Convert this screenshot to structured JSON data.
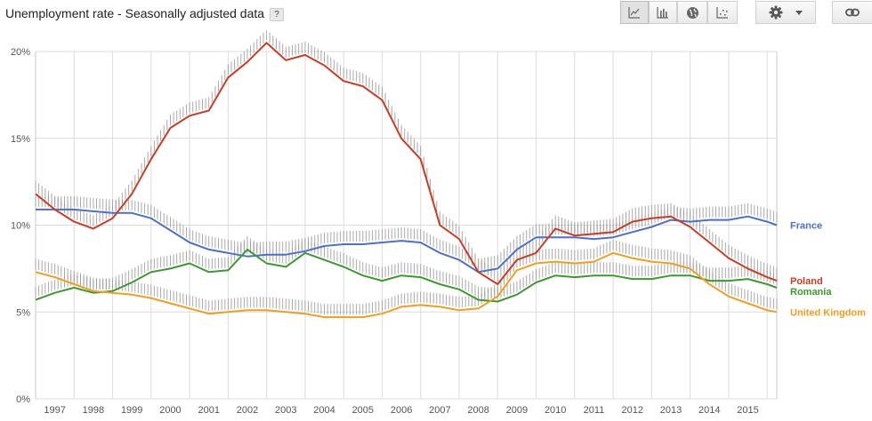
{
  "header": {
    "title": "Unemployment rate - Seasonally adjusted data",
    "help_label": "?",
    "toolbar": [
      {
        "name": "line-chart-icon",
        "selected": true
      },
      {
        "name": "bar-chart-icon",
        "selected": false
      },
      {
        "name": "map-icon",
        "selected": false
      },
      {
        "name": "scatter-chart-icon",
        "selected": false
      }
    ],
    "settings_icon": "gear-icon",
    "settings_dropdown_icon": "caret-down-icon",
    "link_icon": "link-icon"
  },
  "colors": {
    "France": "#4a6fd0",
    "Poland": "#cc3b20",
    "Romania": "#3a9a2e",
    "United Kingdom": "#f29d1d",
    "error_bars": "#9a9a9a",
    "grid": "#dcdcdc"
  },
  "chart_data": {
    "type": "line",
    "title": "Unemployment rate - Seasonally adjusted data",
    "xlabel": "",
    "ylabel": "",
    "xlim": [
      1996.5,
      2015.75
    ],
    "ylim": [
      0,
      20
    ],
    "y_ticks": [
      0,
      5,
      10,
      15,
      20
    ],
    "y_tick_labels": [
      "0%",
      "5%",
      "10%",
      "15%",
      "20%"
    ],
    "x_ticks": [
      1997,
      1998,
      1999,
      2000,
      2001,
      2002,
      2003,
      2004,
      2005,
      2006,
      2007,
      2008,
      2009,
      2010,
      2011,
      2012,
      2013,
      2014,
      2015
    ],
    "x_tick_labels": [
      "1997",
      "1998",
      "1999",
      "2000",
      "2001",
      "2002",
      "2003",
      "2004",
      "2005",
      "2006",
      "2007",
      "2008",
      "2009",
      "2010",
      "2011",
      "2012",
      "2013",
      "2014",
      "2015"
    ],
    "grid": true,
    "legend_position": "right, at line ends",
    "error_bars": true,
    "series": [
      {
        "name": "France",
        "points": [
          [
            1996.5,
            10.9
          ],
          [
            1997.0,
            10.9
          ],
          [
            1997.5,
            10.9
          ],
          [
            1998.0,
            10.8
          ],
          [
            1998.5,
            10.7
          ],
          [
            1999.0,
            10.7
          ],
          [
            1999.5,
            10.4
          ],
          [
            2000.0,
            9.7
          ],
          [
            2000.5,
            9.0
          ],
          [
            2001.0,
            8.6
          ],
          [
            2001.5,
            8.4
          ],
          [
            2002.0,
            8.2
          ],
          [
            2002.5,
            8.3
          ],
          [
            2003.0,
            8.3
          ],
          [
            2003.5,
            8.5
          ],
          [
            2004.0,
            8.8
          ],
          [
            2004.5,
            8.9
          ],
          [
            2005.0,
            8.9
          ],
          [
            2005.5,
            9.0
          ],
          [
            2006.0,
            9.1
          ],
          [
            2006.5,
            9.0
          ],
          [
            2007.0,
            8.4
          ],
          [
            2007.5,
            8.0
          ],
          [
            2008.0,
            7.3
          ],
          [
            2008.5,
            7.5
          ],
          [
            2009.0,
            8.6
          ],
          [
            2009.5,
            9.3
          ],
          [
            2010.0,
            9.3
          ],
          [
            2010.5,
            9.3
          ],
          [
            2011.0,
            9.2
          ],
          [
            2011.5,
            9.3
          ],
          [
            2012.0,
            9.6
          ],
          [
            2012.5,
            9.9
          ],
          [
            2013.0,
            10.3
          ],
          [
            2013.5,
            10.2
          ],
          [
            2014.0,
            10.3
          ],
          [
            2014.5,
            10.3
          ],
          [
            2015.0,
            10.5
          ],
          [
            2015.5,
            10.2
          ],
          [
            2015.75,
            10.0
          ]
        ]
      },
      {
        "name": "Poland",
        "points": [
          [
            1996.5,
            11.8
          ],
          [
            1997.0,
            10.9
          ],
          [
            1997.5,
            10.2
          ],
          [
            1998.0,
            9.8
          ],
          [
            1998.5,
            10.4
          ],
          [
            1999.0,
            11.8
          ],
          [
            1999.5,
            13.8
          ],
          [
            2000.0,
            15.6
          ],
          [
            2000.5,
            16.3
          ],
          [
            2001.0,
            16.6
          ],
          [
            2001.5,
            18.5
          ],
          [
            2002.0,
            19.4
          ],
          [
            2002.5,
            20.5
          ],
          [
            2003.0,
            19.5
          ],
          [
            2003.5,
            19.8
          ],
          [
            2004.0,
            19.2
          ],
          [
            2004.5,
            18.3
          ],
          [
            2005.0,
            18.0
          ],
          [
            2005.5,
            17.2
          ],
          [
            2006.0,
            15.0
          ],
          [
            2006.5,
            13.8
          ],
          [
            2007.0,
            10.0
          ],
          [
            2007.5,
            9.2
          ],
          [
            2008.0,
            7.3
          ],
          [
            2008.5,
            6.6
          ],
          [
            2009.0,
            8.0
          ],
          [
            2009.5,
            8.4
          ],
          [
            2010.0,
            9.8
          ],
          [
            2010.5,
            9.4
          ],
          [
            2011.0,
            9.5
          ],
          [
            2011.5,
            9.6
          ],
          [
            2012.0,
            10.2
          ],
          [
            2012.5,
            10.4
          ],
          [
            2013.0,
            10.5
          ],
          [
            2013.5,
            9.9
          ],
          [
            2014.0,
            9.0
          ],
          [
            2014.5,
            8.1
          ],
          [
            2015.0,
            7.5
          ],
          [
            2015.5,
            7.0
          ],
          [
            2015.75,
            6.8
          ]
        ]
      },
      {
        "name": "Romania",
        "points": [
          [
            1996.5,
            5.7
          ],
          [
            1997.0,
            6.1
          ],
          [
            1997.5,
            6.4
          ],
          [
            1998.0,
            6.1
          ],
          [
            1998.5,
            6.2
          ],
          [
            1999.0,
            6.7
          ],
          [
            1999.5,
            7.3
          ],
          [
            2000.0,
            7.5
          ],
          [
            2000.5,
            7.8
          ],
          [
            2001.0,
            7.3
          ],
          [
            2001.5,
            7.4
          ],
          [
            2002.0,
            8.6
          ],
          [
            2002.5,
            7.8
          ],
          [
            2003.0,
            7.6
          ],
          [
            2003.5,
            8.4
          ],
          [
            2004.0,
            8.0
          ],
          [
            2004.5,
            7.6
          ],
          [
            2005.0,
            7.1
          ],
          [
            2005.5,
            6.8
          ],
          [
            2006.0,
            7.1
          ],
          [
            2006.5,
            7.0
          ],
          [
            2007.0,
            6.6
          ],
          [
            2007.5,
            6.3
          ],
          [
            2008.0,
            5.7
          ],
          [
            2008.5,
            5.6
          ],
          [
            2009.0,
            6.0
          ],
          [
            2009.5,
            6.7
          ],
          [
            2010.0,
            7.1
          ],
          [
            2010.5,
            7.0
          ],
          [
            2011.0,
            7.1
          ],
          [
            2011.5,
            7.1
          ],
          [
            2012.0,
            6.9
          ],
          [
            2012.5,
            6.9
          ],
          [
            2013.0,
            7.1
          ],
          [
            2013.5,
            7.1
          ],
          [
            2014.0,
            6.8
          ],
          [
            2014.5,
            6.8
          ],
          [
            2015.0,
            6.9
          ],
          [
            2015.5,
            6.6
          ],
          [
            2015.75,
            6.4
          ]
        ]
      },
      {
        "name": "United Kingdom",
        "points": [
          [
            1996.5,
            7.3
          ],
          [
            1997.0,
            7.0
          ],
          [
            1997.5,
            6.6
          ],
          [
            1998.0,
            6.2
          ],
          [
            1998.5,
            6.1
          ],
          [
            1999.0,
            6.0
          ],
          [
            1999.5,
            5.8
          ],
          [
            2000.0,
            5.5
          ],
          [
            2000.5,
            5.2
          ],
          [
            2001.0,
            4.9
          ],
          [
            2001.5,
            5.0
          ],
          [
            2002.0,
            5.1
          ],
          [
            2002.5,
            5.1
          ],
          [
            2003.0,
            5.0
          ],
          [
            2003.5,
            4.9
          ],
          [
            2004.0,
            4.7
          ],
          [
            2004.5,
            4.7
          ],
          [
            2005.0,
            4.7
          ],
          [
            2005.5,
            4.9
          ],
          [
            2006.0,
            5.3
          ],
          [
            2006.5,
            5.4
          ],
          [
            2007.0,
            5.3
          ],
          [
            2007.5,
            5.1
          ],
          [
            2008.0,
            5.2
          ],
          [
            2008.5,
            5.9
          ],
          [
            2009.0,
            7.4
          ],
          [
            2009.5,
            7.8
          ],
          [
            2010.0,
            7.9
          ],
          [
            2010.5,
            7.8
          ],
          [
            2011.0,
            7.9
          ],
          [
            2011.5,
            8.4
          ],
          [
            2012.0,
            8.1
          ],
          [
            2012.5,
            7.9
          ],
          [
            2013.0,
            7.8
          ],
          [
            2013.5,
            7.5
          ],
          [
            2014.0,
            6.6
          ],
          [
            2014.5,
            5.9
          ],
          [
            2015.0,
            5.5
          ],
          [
            2015.5,
            5.1
          ],
          [
            2015.75,
            5.0
          ]
        ]
      }
    ]
  }
}
